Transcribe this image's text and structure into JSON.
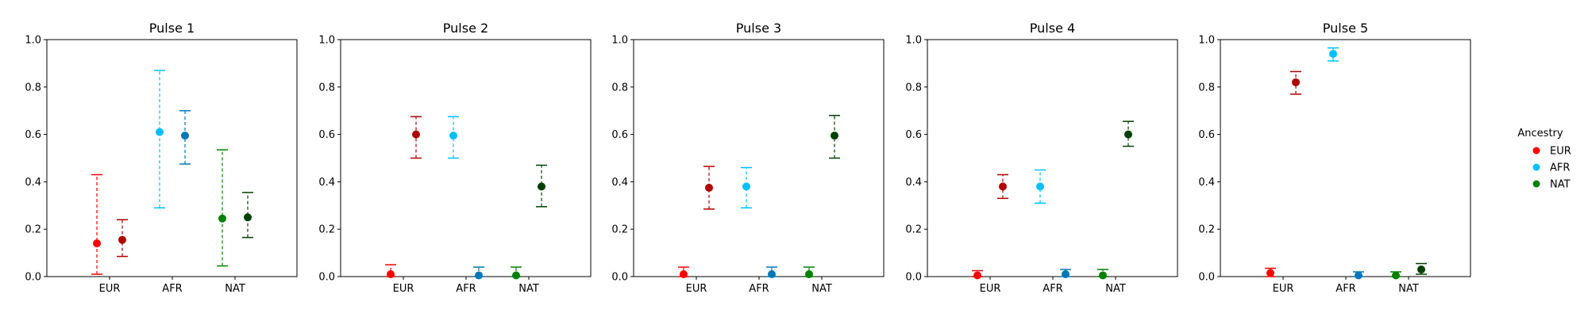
{
  "legend": {
    "title": "Ancestry",
    "entries": [
      {
        "label": "EUR",
        "color": "#ff0000"
      },
      {
        "label": "AFR",
        "color": "#00bfff"
      },
      {
        "label": "NAT",
        "color": "#008000"
      }
    ],
    "placement": "right"
  },
  "chart_data": [
    {
      "type": "scatter",
      "title": "Pulse 1",
      "categories": [
        "EUR",
        "AFR",
        "NAT"
      ],
      "ylim": [
        0,
        1
      ],
      "yticks": [
        "0.0",
        "0.2",
        "0.4",
        "0.6",
        "0.8",
        "1.0"
      ],
      "series": [
        {
          "values": [
            0.14,
            0.61,
            0.245
          ],
          "lower": [
            0.01,
            0.29,
            0.045
          ],
          "upper": [
            0.43,
            0.87,
            0.535
          ],
          "color": "#ff0000"
        },
        {
          "values": [
            0.155,
            0.595,
            0.25
          ],
          "lower": [
            0.085,
            0.475,
            0.165
          ],
          "upper": [
            0.24,
            0.7,
            0.355
          ],
          "color": "#b00000"
        }
      ]
    },
    {
      "type": "scatter",
      "title": "Pulse 2",
      "categories": [
        "EUR",
        "AFR",
        "NAT"
      ],
      "ylim": [
        0,
        1
      ],
      "yticks": [
        "0.0",
        "0.2",
        "0.4",
        "0.6",
        "0.8",
        "1.0"
      ],
      "series": [
        {
          "values": [
            0.01,
            0.595,
            0.005
          ],
          "lower": [
            0.0,
            0.5,
            0.0
          ],
          "upper": [
            0.05,
            0.675,
            0.04
          ],
          "color": "#ff0000"
        },
        {
          "values": [
            0.6,
            0.005,
            0.38
          ],
          "lower": [
            0.5,
            0.0,
            0.295
          ],
          "upper": [
            0.675,
            0.04,
            0.47
          ],
          "color": "#b00000"
        }
      ]
    },
    {
      "type": "scatter",
      "title": "Pulse 3",
      "categories": [
        "EUR",
        "AFR",
        "NAT"
      ],
      "ylim": [
        0,
        1
      ],
      "yticks": [
        "0.0",
        "0.2",
        "0.4",
        "0.6",
        "0.8",
        "1.0"
      ],
      "series": [
        {
          "values": [
            0.01,
            0.38,
            0.01
          ],
          "lower": [
            0.0,
            0.29,
            0.0
          ],
          "upper": [
            0.04,
            0.46,
            0.04
          ],
          "color": "#ff0000"
        },
        {
          "values": [
            0.375,
            0.01,
            0.595
          ],
          "lower": [
            0.285,
            0.0,
            0.5
          ],
          "upper": [
            0.465,
            0.04,
            0.68
          ],
          "color": "#b00000"
        }
      ]
    },
    {
      "type": "scatter",
      "title": "Pulse 4",
      "categories": [
        "EUR",
        "AFR",
        "NAT"
      ],
      "ylim": [
        0,
        1
      ],
      "yticks": [
        "0.0",
        "0.2",
        "0.4",
        "0.6",
        "0.8",
        "1.0"
      ],
      "series": [
        {
          "values": [
            0.005,
            0.38,
            0.005
          ],
          "lower": [
            0.0,
            0.31,
            0.0
          ],
          "upper": [
            0.025,
            0.45,
            0.03
          ],
          "color": "#ff0000"
        },
        {
          "values": [
            0.38,
            0.01,
            0.6
          ],
          "lower": [
            0.33,
            0.0,
            0.55
          ],
          "upper": [
            0.43,
            0.03,
            0.655
          ],
          "color": "#b00000"
        }
      ]
    },
    {
      "type": "scatter",
      "title": "Pulse 5",
      "categories": [
        "EUR",
        "AFR",
        "NAT"
      ],
      "ylim": [
        0,
        1
      ],
      "yticks": [
        "0.0",
        "0.2",
        "0.4",
        "0.6",
        "0.8",
        "1.0"
      ],
      "series": [
        {
          "values": [
            0.015,
            0.94,
            0.005
          ],
          "lower": [
            0.0,
            0.91,
            0.0
          ],
          "upper": [
            0.035,
            0.965,
            0.02
          ],
          "color": "#ff0000"
        },
        {
          "values": [
            0.82,
            0.005,
            0.03
          ],
          "lower": [
            0.77,
            0.0,
            0.01
          ],
          "upper": [
            0.865,
            0.02,
            0.055
          ],
          "color": "#b00000"
        }
      ]
    }
  ]
}
